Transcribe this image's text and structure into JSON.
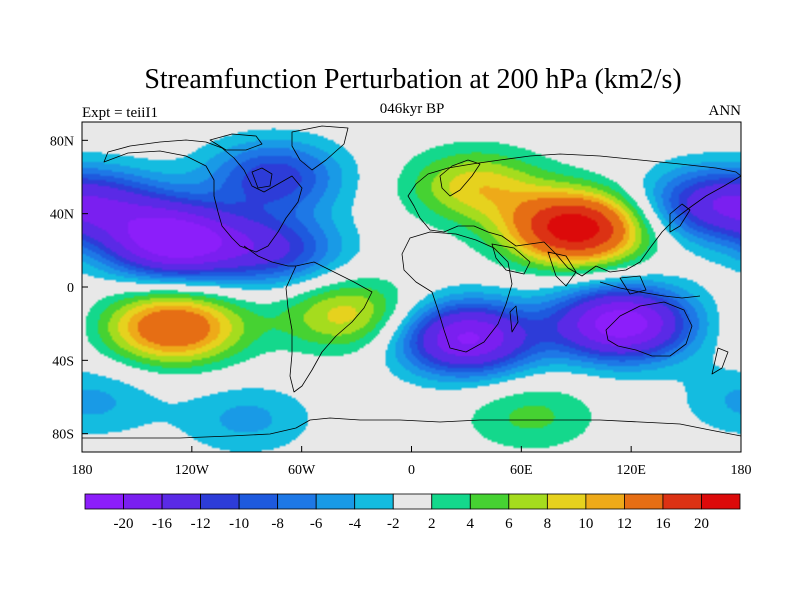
{
  "chart_data": {
    "type": "heatmap",
    "title": "Streamfunction Perturbation at 200 hPa (km2/s)",
    "subtitle_left": "Expt = teiiI1",
    "subtitle_center": "046kyr BP",
    "subtitle_right": "ANN",
    "x_ticks": [
      {
        "value": -180,
        "label": "180"
      },
      {
        "value": -120,
        "label": "120W"
      },
      {
        "value": -60,
        "label": "60W"
      },
      {
        "value": 0,
        "label": "0"
      },
      {
        "value": 60,
        "label": "60E"
      },
      {
        "value": 120,
        "label": "120E"
      },
      {
        "value": 180,
        "label": "180"
      }
    ],
    "y_ticks": [
      {
        "value": 80,
        "label": "80N"
      },
      {
        "value": 40,
        "label": "40N"
      },
      {
        "value": 0,
        "label": "0"
      },
      {
        "value": -40,
        "label": "40S"
      },
      {
        "value": -80,
        "label": "80S"
      }
    ],
    "xlim": [
      -180,
      180
    ],
    "ylim": [
      -90,
      90
    ],
    "colorbar": {
      "labels": [
        "-20",
        "-16",
        "-12",
        "-10",
        "-8",
        "-6",
        "-4",
        "-2",
        "2",
        "4",
        "6",
        "8",
        "10",
        "12",
        "16",
        "20"
      ],
      "colors": [
        "#8c1efa",
        "#7a1ff0",
        "#5a2ae6",
        "#2d3cd8",
        "#1e5ade",
        "#1e78e6",
        "#199ae6",
        "#14bce0",
        "#e8e8e8",
        "#14d88c",
        "#46d232",
        "#a5dc1e",
        "#e6d21e",
        "#eeaa19",
        "#e66e14",
        "#dc3214",
        "#dc0a0a"
      ]
    },
    "fields": [
      {
        "lon": -130,
        "lat": 25,
        "amp": -20
      },
      {
        "lon": -75,
        "lat": 20,
        "amp": -10
      },
      {
        "lon": -75,
        "lat": 60,
        "amp": -10
      },
      {
        "lon": 160,
        "lat": 45,
        "amp": -10
      },
      {
        "lon": -165,
        "lat": 45,
        "amp": -8
      },
      {
        "lon": 90,
        "lat": 32,
        "amp": 20
      },
      {
        "lon": 35,
        "lat": 55,
        "amp": 8
      },
      {
        "lon": -130,
        "lat": -22,
        "amp": 14
      },
      {
        "lon": -35,
        "lat": -15,
        "amp": 8
      },
      {
        "lon": 30,
        "lat": -28,
        "amp": -18
      },
      {
        "lon": 115,
        "lat": -20,
        "amp": -20
      },
      {
        "lon": -90,
        "lat": -72,
        "amp": -4
      },
      {
        "lon": 65,
        "lat": -70,
        "amp": 4
      },
      {
        "lon": -175,
        "lat": -62,
        "amp": -4
      }
    ]
  }
}
